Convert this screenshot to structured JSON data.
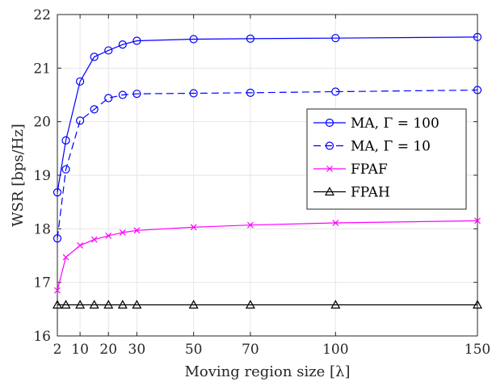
{
  "chart_data": {
    "type": "line",
    "xlabel": "Moving region size [λ]",
    "ylabel": "WSR [bps/Hz]",
    "xlim": [
      2,
      150
    ],
    "ylim": [
      16,
      22
    ],
    "xticks": [
      2,
      10,
      20,
      30,
      50,
      70,
      100,
      150
    ],
    "yticks": [
      16,
      17,
      18,
      19,
      20,
      21,
      22
    ],
    "grid": true,
    "legend_position": "center-right",
    "x": [
      2,
      5,
      10,
      15,
      20,
      25,
      30,
      50,
      70,
      100,
      150
    ],
    "series": [
      {
        "name": "MA, Γ = 100",
        "color": "#0000ff",
        "dash": "solid",
        "marker": "circle",
        "values": [
          18.68,
          19.65,
          20.75,
          21.21,
          21.33,
          21.44,
          21.51,
          21.54,
          21.55,
          21.56,
          21.58
        ]
      },
      {
        "name": "MA, Γ = 10",
        "color": "#0000ff",
        "dash": "dashed",
        "marker": "circle",
        "values": [
          17.82,
          19.11,
          20.02,
          20.23,
          20.44,
          20.5,
          20.52,
          20.53,
          20.54,
          20.56,
          20.59
        ]
      },
      {
        "name": "FPAF",
        "color": "#ff00ff",
        "dash": "solid",
        "marker": "x",
        "values": [
          16.85,
          17.47,
          17.69,
          17.8,
          17.87,
          17.93,
          17.97,
          18.03,
          18.07,
          18.11,
          18.15
        ]
      },
      {
        "name": "FPAH",
        "color": "#000000",
        "dash": "solid",
        "marker": "triangle",
        "values": [
          16.58,
          16.58,
          16.58,
          16.58,
          16.58,
          16.58,
          16.58,
          16.58,
          16.58,
          16.58,
          16.58
        ]
      }
    ]
  }
}
